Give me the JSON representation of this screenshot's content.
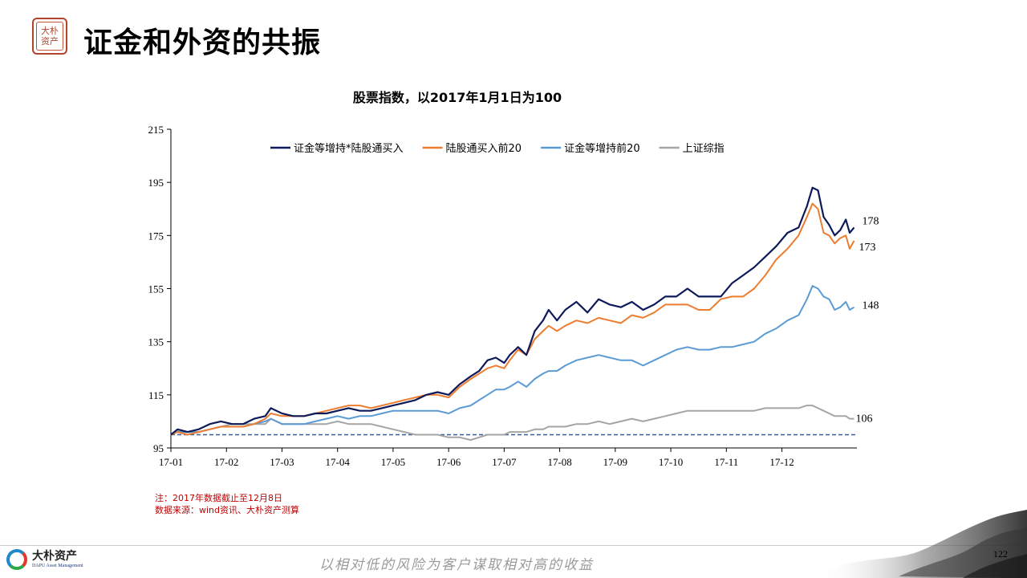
{
  "header": {
    "title": "证金和外资的共振",
    "seal_text": "大朴\n资产"
  },
  "chart_data": {
    "type": "line",
    "title": "股票指数，以2017年1月1日为100",
    "ylim": [
      95,
      215
    ],
    "yticks": [
      "95",
      "115",
      "135",
      "155",
      "175",
      "195",
      "215"
    ],
    "xticks": [
      "17-01",
      "17-02",
      "17-03",
      "17-04",
      "17-05",
      "17-06",
      "17-07",
      "17-08",
      "17-09",
      "17-10",
      "17-11",
      "17-12"
    ],
    "legend_position": "top",
    "baseline": 100,
    "series": [
      {
        "name": "证金等增持*陆股通买入",
        "color": "#0d1a5a",
        "end_label": "178",
        "values": [
          [
            0,
            100
          ],
          [
            0.12,
            102
          ],
          [
            0.3,
            101
          ],
          [
            0.5,
            102
          ],
          [
            0.7,
            104
          ],
          [
            0.9,
            105
          ],
          [
            1.1,
            104
          ],
          [
            1.3,
            104
          ],
          [
            1.5,
            106
          ],
          [
            1.7,
            107
          ],
          [
            1.8,
            110
          ],
          [
            2.0,
            108
          ],
          [
            2.2,
            107
          ],
          [
            2.4,
            107
          ],
          [
            2.6,
            108
          ],
          [
            2.8,
            108
          ],
          [
            3.0,
            109
          ],
          [
            3.2,
            110
          ],
          [
            3.4,
            109
          ],
          [
            3.6,
            109
          ],
          [
            3.8,
            110
          ],
          [
            4.0,
            111
          ],
          [
            4.2,
            112
          ],
          [
            4.4,
            113
          ],
          [
            4.6,
            115
          ],
          [
            4.8,
            116
          ],
          [
            5.0,
            115
          ],
          [
            5.2,
            119
          ],
          [
            5.4,
            122
          ],
          [
            5.55,
            124
          ],
          [
            5.7,
            128
          ],
          [
            5.85,
            129
          ],
          [
            6.0,
            127
          ],
          [
            6.1,
            130
          ],
          [
            6.25,
            133
          ],
          [
            6.4,
            130
          ],
          [
            6.55,
            139
          ],
          [
            6.7,
            143
          ],
          [
            6.8,
            147
          ],
          [
            6.95,
            143
          ],
          [
            7.1,
            147
          ],
          [
            7.3,
            150
          ],
          [
            7.5,
            146
          ],
          [
            7.7,
            151
          ],
          [
            7.9,
            149
          ],
          [
            8.1,
            148
          ],
          [
            8.3,
            150
          ],
          [
            8.5,
            147
          ],
          [
            8.7,
            149
          ],
          [
            8.9,
            152
          ],
          [
            9.1,
            152
          ],
          [
            9.3,
            155
          ],
          [
            9.5,
            152
          ],
          [
            9.7,
            152
          ],
          [
            9.9,
            152
          ],
          [
            10.1,
            157
          ],
          [
            10.3,
            160
          ],
          [
            10.5,
            163
          ],
          [
            10.7,
            167
          ],
          [
            10.9,
            171
          ],
          [
            11.1,
            176
          ],
          [
            11.3,
            178
          ],
          [
            11.45,
            186
          ],
          [
            11.55,
            193
          ],
          [
            11.65,
            192
          ],
          [
            11.75,
            182
          ],
          [
            11.85,
            179
          ],
          [
            11.95,
            175
          ],
          [
            12.05,
            177
          ],
          [
            12.15,
            181
          ],
          [
            12.22,
            176
          ],
          [
            12.3,
            178
          ]
        ]
      },
      {
        "name": "陆股通买入前20",
        "color": "#ed7d31",
        "end_label": "173",
        "values": [
          [
            0,
            100
          ],
          [
            0.12,
            101
          ],
          [
            0.3,
            100
          ],
          [
            0.5,
            101
          ],
          [
            0.7,
            102
          ],
          [
            0.9,
            103
          ],
          [
            1.1,
            103
          ],
          [
            1.3,
            103
          ],
          [
            1.5,
            104
          ],
          [
            1.7,
            106
          ],
          [
            1.8,
            108
          ],
          [
            2.0,
            107
          ],
          [
            2.2,
            107
          ],
          [
            2.4,
            107
          ],
          [
            2.6,
            108
          ],
          [
            2.8,
            109
          ],
          [
            3.0,
            110
          ],
          [
            3.2,
            111
          ],
          [
            3.4,
            111
          ],
          [
            3.6,
            110
          ],
          [
            3.8,
            111
          ],
          [
            4.0,
            112
          ],
          [
            4.2,
            113
          ],
          [
            4.4,
            114
          ],
          [
            4.6,
            115
          ],
          [
            4.8,
            115
          ],
          [
            5.0,
            114
          ],
          [
            5.2,
            118
          ],
          [
            5.4,
            121
          ],
          [
            5.55,
            123
          ],
          [
            5.7,
            125
          ],
          [
            5.85,
            126
          ],
          [
            6.0,
            125
          ],
          [
            6.1,
            128
          ],
          [
            6.25,
            132
          ],
          [
            6.4,
            130
          ],
          [
            6.55,
            136
          ],
          [
            6.7,
            139
          ],
          [
            6.8,
            141
          ],
          [
            6.95,
            139
          ],
          [
            7.1,
            141
          ],
          [
            7.3,
            143
          ],
          [
            7.5,
            142
          ],
          [
            7.7,
            144
          ],
          [
            7.9,
            143
          ],
          [
            8.1,
            142
          ],
          [
            8.3,
            145
          ],
          [
            8.5,
            144
          ],
          [
            8.7,
            146
          ],
          [
            8.9,
            149
          ],
          [
            9.1,
            149
          ],
          [
            9.3,
            149
          ],
          [
            9.5,
            147
          ],
          [
            9.7,
            147
          ],
          [
            9.9,
            151
          ],
          [
            10.1,
            152
          ],
          [
            10.3,
            152
          ],
          [
            10.5,
            155
          ],
          [
            10.7,
            160
          ],
          [
            10.9,
            166
          ],
          [
            11.1,
            170
          ],
          [
            11.3,
            175
          ],
          [
            11.45,
            182
          ],
          [
            11.55,
            187
          ],
          [
            11.65,
            185
          ],
          [
            11.75,
            176
          ],
          [
            11.85,
            175
          ],
          [
            11.95,
            172
          ],
          [
            12.05,
            174
          ],
          [
            12.15,
            175
          ],
          [
            12.22,
            170
          ],
          [
            12.3,
            173
          ]
        ]
      },
      {
        "name": "证金等增持前20",
        "color": "#5b9bd5",
        "end_label": "148",
        "values": [
          [
            0,
            100
          ],
          [
            0.12,
            101
          ],
          [
            0.3,
            101
          ],
          [
            0.5,
            101
          ],
          [
            0.7,
            102
          ],
          [
            0.9,
            103
          ],
          [
            1.1,
            103
          ],
          [
            1.3,
            103
          ],
          [
            1.5,
            104
          ],
          [
            1.7,
            105
          ],
          [
            1.8,
            106
          ],
          [
            2.0,
            104
          ],
          [
            2.2,
            104
          ],
          [
            2.4,
            104
          ],
          [
            2.6,
            105
          ],
          [
            2.8,
            106
          ],
          [
            3.0,
            107
          ],
          [
            3.2,
            106
          ],
          [
            3.4,
            107
          ],
          [
            3.6,
            107
          ],
          [
            3.8,
            108
          ],
          [
            4.0,
            109
          ],
          [
            4.2,
            109
          ],
          [
            4.4,
            109
          ],
          [
            4.6,
            109
          ],
          [
            4.8,
            109
          ],
          [
            5.0,
            108
          ],
          [
            5.2,
            110
          ],
          [
            5.4,
            111
          ],
          [
            5.55,
            113
          ],
          [
            5.7,
            115
          ],
          [
            5.85,
            117
          ],
          [
            6.0,
            117
          ],
          [
            6.1,
            118
          ],
          [
            6.25,
            120
          ],
          [
            6.4,
            118
          ],
          [
            6.55,
            121
          ],
          [
            6.7,
            123
          ],
          [
            6.8,
            124
          ],
          [
            6.95,
            124
          ],
          [
            7.1,
            126
          ],
          [
            7.3,
            128
          ],
          [
            7.5,
            129
          ],
          [
            7.7,
            130
          ],
          [
            7.9,
            129
          ],
          [
            8.1,
            128
          ],
          [
            8.3,
            128
          ],
          [
            8.5,
            126
          ],
          [
            8.7,
            128
          ],
          [
            8.9,
            130
          ],
          [
            9.1,
            132
          ],
          [
            9.3,
            133
          ],
          [
            9.5,
            132
          ],
          [
            9.7,
            132
          ],
          [
            9.9,
            133
          ],
          [
            10.1,
            133
          ],
          [
            10.3,
            134
          ],
          [
            10.5,
            135
          ],
          [
            10.7,
            138
          ],
          [
            10.9,
            140
          ],
          [
            11.1,
            143
          ],
          [
            11.3,
            145
          ],
          [
            11.45,
            151
          ],
          [
            11.55,
            156
          ],
          [
            11.65,
            155
          ],
          [
            11.75,
            152
          ],
          [
            11.85,
            151
          ],
          [
            11.95,
            147
          ],
          [
            12.05,
            148
          ],
          [
            12.15,
            150
          ],
          [
            12.22,
            147
          ],
          [
            12.3,
            148
          ]
        ]
      },
      {
        "name": "上证综指",
        "color": "#a5a5a5",
        "end_label": "106",
        "values": [
          [
            0,
            100
          ],
          [
            0.12,
            101
          ],
          [
            0.3,
            101
          ],
          [
            0.5,
            101
          ],
          [
            0.7,
            102
          ],
          [
            0.9,
            103
          ],
          [
            1.1,
            104
          ],
          [
            1.3,
            104
          ],
          [
            1.5,
            104
          ],
          [
            1.7,
            104
          ],
          [
            1.8,
            106
          ],
          [
            2.0,
            104
          ],
          [
            2.2,
            104
          ],
          [
            2.4,
            104
          ],
          [
            2.6,
            104
          ],
          [
            2.8,
            104
          ],
          [
            3.0,
            105
          ],
          [
            3.2,
            104
          ],
          [
            3.4,
            104
          ],
          [
            3.6,
            104
          ],
          [
            3.8,
            103
          ],
          [
            4.0,
            102
          ],
          [
            4.2,
            101
          ],
          [
            4.4,
            100
          ],
          [
            4.6,
            100
          ],
          [
            4.8,
            100
          ],
          [
            5.0,
            99
          ],
          [
            5.2,
            99
          ],
          [
            5.4,
            98
          ],
          [
            5.55,
            99
          ],
          [
            5.7,
            100
          ],
          [
            5.85,
            100
          ],
          [
            6.0,
            100
          ],
          [
            6.1,
            101
          ],
          [
            6.25,
            101
          ],
          [
            6.4,
            101
          ],
          [
            6.55,
            102
          ],
          [
            6.7,
            102
          ],
          [
            6.8,
            103
          ],
          [
            6.95,
            103
          ],
          [
            7.1,
            103
          ],
          [
            7.3,
            104
          ],
          [
            7.5,
            104
          ],
          [
            7.7,
            105
          ],
          [
            7.9,
            104
          ],
          [
            8.1,
            105
          ],
          [
            8.3,
            106
          ],
          [
            8.5,
            105
          ],
          [
            8.7,
            106
          ],
          [
            8.9,
            107
          ],
          [
            9.1,
            108
          ],
          [
            9.3,
            109
          ],
          [
            9.5,
            109
          ],
          [
            9.7,
            109
          ],
          [
            9.9,
            109
          ],
          [
            10.1,
            109
          ],
          [
            10.3,
            109
          ],
          [
            10.5,
            109
          ],
          [
            10.7,
            110
          ],
          [
            10.9,
            110
          ],
          [
            11.1,
            110
          ],
          [
            11.3,
            110
          ],
          [
            11.45,
            111
          ],
          [
            11.55,
            111
          ],
          [
            11.65,
            110
          ],
          [
            11.75,
            109
          ],
          [
            11.85,
            108
          ],
          [
            11.95,
            107
          ],
          [
            12.05,
            107
          ],
          [
            12.15,
            107
          ],
          [
            12.22,
            106
          ],
          [
            12.3,
            106
          ]
        ]
      }
    ]
  },
  "notes": {
    "line1": "注：2017年数据截止至12月8日",
    "line2": "数据来源：wind资讯、大朴资产测算"
  },
  "footer": {
    "brand_cn": "大朴资产",
    "brand_en": "DAPU Asset Management",
    "slogan": "以相对低的风险为客户谋取相对高的收益",
    "page_number": "122"
  }
}
